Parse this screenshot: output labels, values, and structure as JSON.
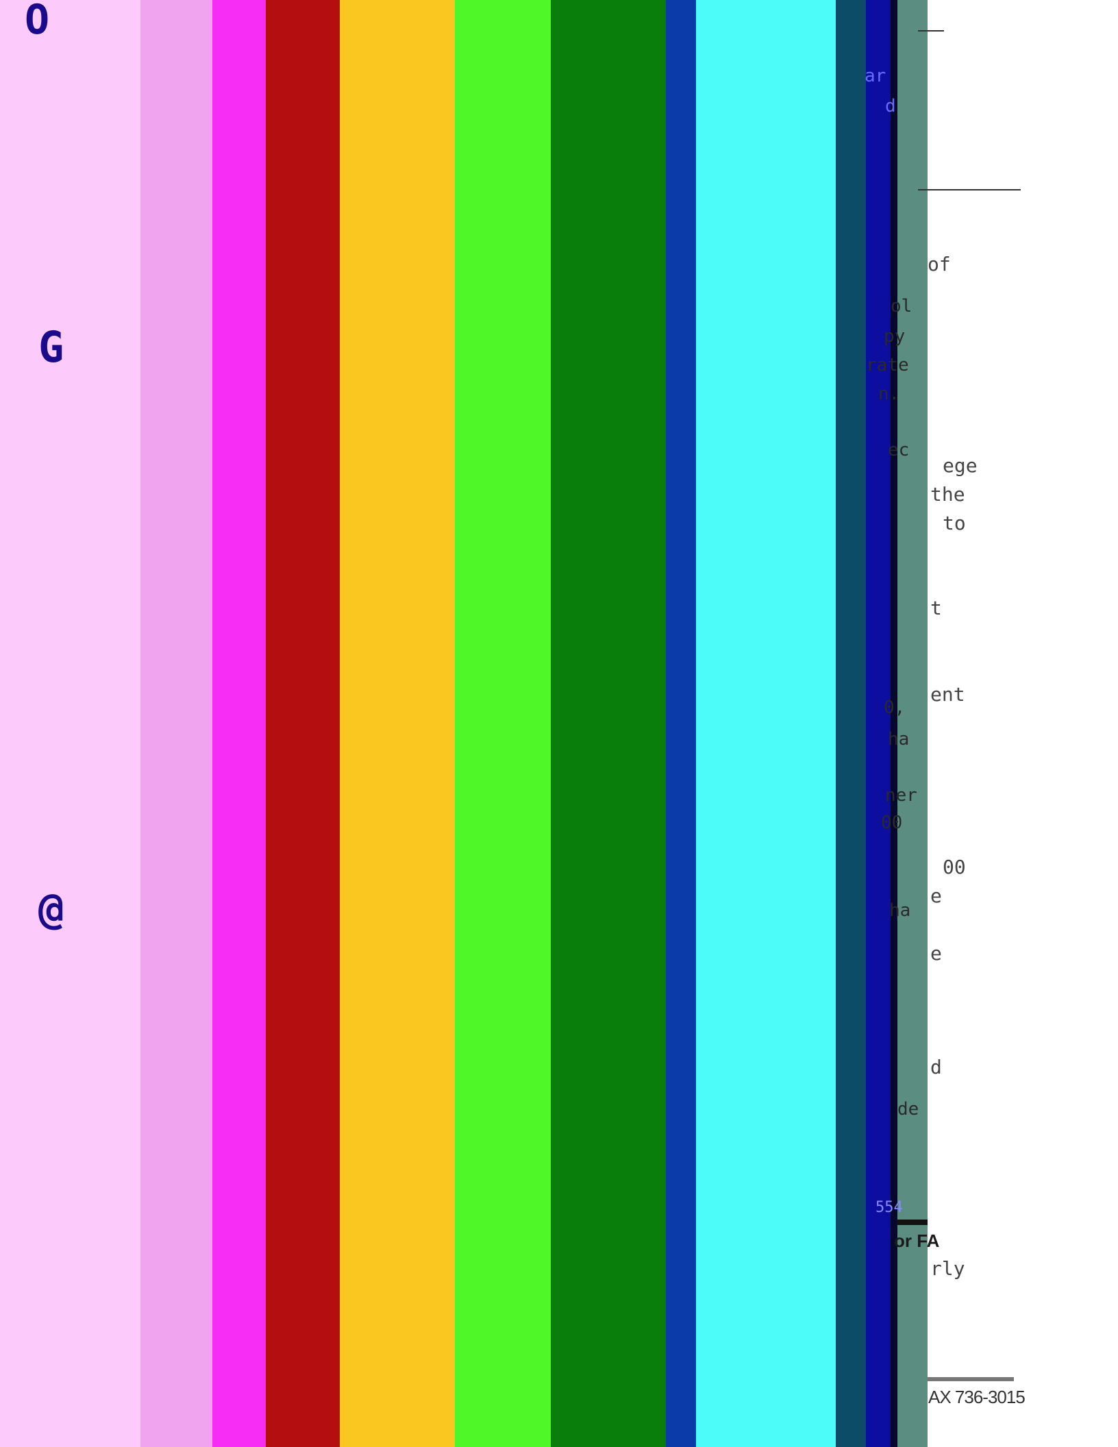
{
  "colors": {
    "pale_pink": "#fccafb",
    "magenta": "#f72cf5",
    "crimson": "#b50e10",
    "amber": "#f9c720",
    "lime": "#50f728",
    "green": "#0a7e0a",
    "blue": "#0b3ba8",
    "cyan": "#4bfcf9",
    "teal": "#0c4c66",
    "navy": "#0c0ea0",
    "slate_green": "#5b8d80"
  },
  "glyphs": {
    "top_left": "O",
    "left_middle_upper": "G",
    "left_middle_lower": "@"
  },
  "document": {
    "lines": [
      {
        "key": "l1",
        "text": "of"
      },
      {
        "key": "l2",
        "text": "ege"
      },
      {
        "key": "l3",
        "text": "the"
      },
      {
        "key": "l4",
        "text": "to"
      },
      {
        "key": "l5",
        "text": "t"
      },
      {
        "key": "l6",
        "text": "ent"
      },
      {
        "key": "l7",
        "text": "00"
      },
      {
        "key": "l8",
        "text": "e"
      },
      {
        "key": "l9",
        "text": "e"
      },
      {
        "key": "l10",
        "text": "d"
      },
      {
        "key": "l11",
        "text": "rly"
      }
    ],
    "left_fragments": [
      {
        "key": "f1",
        "text": "ar"
      },
      {
        "key": "f2",
        "text": "d"
      },
      {
        "key": "f3",
        "text": "ol"
      },
      {
        "key": "f4",
        "text": "py"
      },
      {
        "key": "f5",
        "text": "rate"
      },
      {
        "key": "f6",
        "text": "n."
      },
      {
        "key": "f7",
        "text": "ec"
      },
      {
        "key": "f8",
        "text": "0,"
      },
      {
        "key": "f9",
        "text": "ha"
      },
      {
        "key": "f10",
        "text": "ner"
      },
      {
        "key": "f11",
        "text": "00"
      },
      {
        "key": "f12",
        "text": "ha"
      },
      {
        "key": "f13",
        "text": "de"
      },
      {
        "key": "f14",
        "text": "554"
      }
    ],
    "fa_label": "or FA",
    "fax_line": "AX 736-3015"
  }
}
